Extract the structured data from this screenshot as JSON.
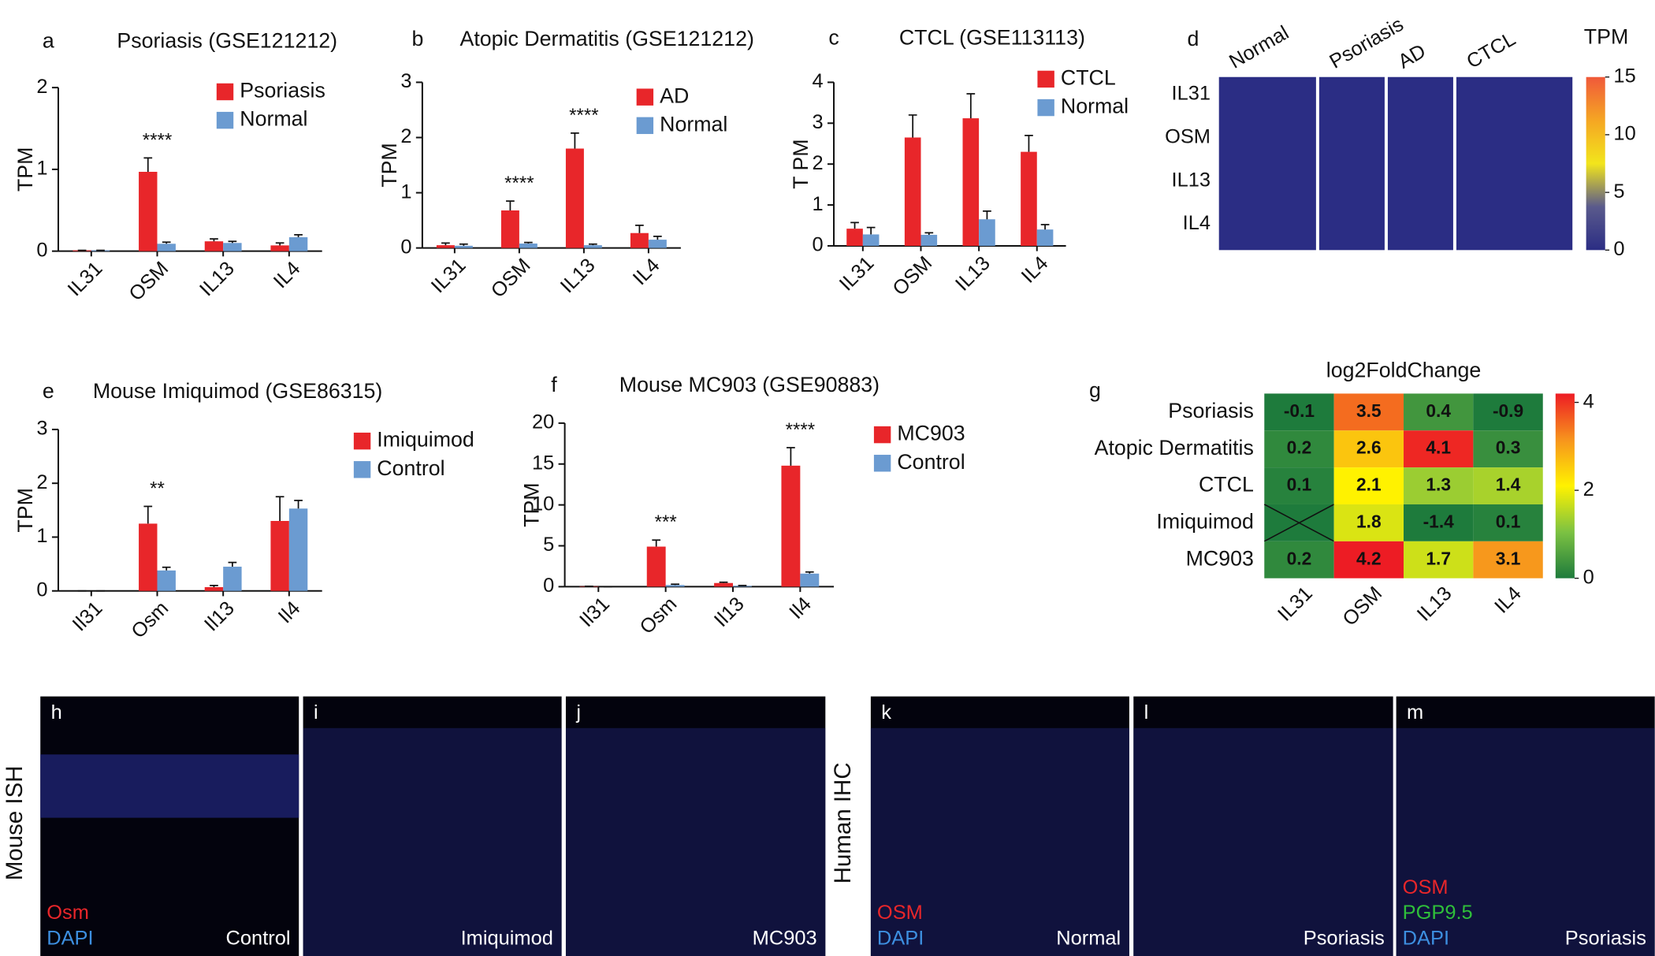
{
  "chart_data": [
    {
      "type": "bar",
      "panel": "a",
      "title": "Psoriasis (GSE121212)",
      "ylabel": "TPM",
      "categories": [
        "IL31",
        "OSM",
        "IL13",
        "IL4"
      ],
      "series": [
        {
          "name": "Psoriasis",
          "color": "#e8262a",
          "values": [
            0.01,
            0.97,
            0.12,
            0.07
          ],
          "errors": [
            0.0,
            0.17,
            0.03,
            0.03
          ]
        },
        {
          "name": "Normal",
          "color": "#6b9bd1",
          "values": [
            0.01,
            0.09,
            0.1,
            0.17
          ],
          "errors": [
            0.0,
            0.02,
            0.02,
            0.03
          ]
        }
      ],
      "significance": [
        null,
        "****",
        null,
        null
      ],
      "ylim": [
        0,
        2
      ],
      "yticks": [
        0,
        1,
        2
      ]
    },
    {
      "type": "bar",
      "panel": "b",
      "title": "Atopic Dermatitis (GSE121212)",
      "ylabel": "TPM",
      "categories": [
        "IL31",
        "OSM",
        "IL13",
        "IL4"
      ],
      "series": [
        {
          "name": "AD",
          "color": "#e8262a",
          "values": [
            0.05,
            0.68,
            1.8,
            0.27
          ],
          "errors": [
            0.04,
            0.17,
            0.28,
            0.14
          ]
        },
        {
          "name": "Normal",
          "color": "#6b9bd1",
          "values": [
            0.04,
            0.08,
            0.05,
            0.15
          ],
          "errors": [
            0.03,
            0.02,
            0.02,
            0.06
          ]
        }
      ],
      "significance": [
        null,
        "****",
        "****",
        null
      ],
      "ylim": [
        0,
        3
      ],
      "yticks": [
        0,
        1,
        2,
        3
      ]
    },
    {
      "type": "bar",
      "panel": "c",
      "title": "CTCL (GSE113113)",
      "ylabel": "T PM",
      "categories": [
        "IL31",
        "OSM",
        "IL13",
        "IL4"
      ],
      "series": [
        {
          "name": "CTCL",
          "color": "#e8262a",
          "values": [
            0.42,
            2.65,
            3.12,
            2.3
          ],
          "errors": [
            0.15,
            0.55,
            0.6,
            0.4
          ]
        },
        {
          "name": "Normal",
          "color": "#6b9bd1",
          "values": [
            0.28,
            0.27,
            0.65,
            0.4
          ],
          "errors": [
            0.17,
            0.05,
            0.2,
            0.12
          ]
        }
      ],
      "ylim": [
        0,
        4
      ],
      "yticks": [
        0,
        1,
        2,
        3,
        4
      ]
    },
    {
      "type": "heatmap",
      "panel": "d",
      "colorbar_label": "TPM",
      "groups": [
        "Normal",
        "Psoriasis",
        "AD",
        "CTCL"
      ],
      "rows": [
        "IL31",
        "OSM",
        "IL13",
        "IL4"
      ],
      "colormap": [
        "#2b2d84",
        "#5a5a8c",
        "#f2e51c",
        "#f5a623",
        "#f0593a"
      ],
      "zlim": [
        0,
        15
      ],
      "zticks": [
        0,
        5,
        10,
        15
      ]
    },
    {
      "type": "bar",
      "panel": "e",
      "title": "Mouse Imiquimod (GSE86315)",
      "ylabel": "TPM",
      "categories": [
        "Il31",
        "Osm",
        "Il13",
        "Il4"
      ],
      "series": [
        {
          "name": "Imiquimod",
          "color": "#e8262a",
          "values": [
            0,
            1.25,
            0.07,
            1.3
          ],
          "errors": [
            0,
            0.32,
            0.03,
            0.45
          ]
        },
        {
          "name": "Control",
          "color": "#6b9bd1",
          "values": [
            0,
            0.38,
            0.45,
            1.53
          ],
          "errors": [
            0,
            0.06,
            0.08,
            0.15
          ]
        }
      ],
      "significance": [
        null,
        "**",
        null,
        null
      ],
      "ylim": [
        0,
        3
      ],
      "yticks": [
        0,
        1,
        2,
        3
      ]
    },
    {
      "type": "bar",
      "panel": "f",
      "title": "Mouse MC903 (GSE90883)",
      "ylabel": "TPM",
      "categories": [
        "Il31",
        "Osm",
        "Il13",
        "Il4"
      ],
      "series": [
        {
          "name": "MC903",
          "color": "#e8262a",
          "values": [
            0.05,
            4.9,
            0.45,
            14.8
          ],
          "errors": [
            0,
            0.8,
            0.1,
            2.2
          ]
        },
        {
          "name": "Control",
          "color": "#6b9bd1",
          "values": [
            0,
            0.2,
            0.1,
            1.6
          ],
          "errors": [
            0,
            0.1,
            0.05,
            0.2
          ]
        }
      ],
      "significance": [
        null,
        "***",
        null,
        "****"
      ],
      "ylim": [
        0,
        20
      ],
      "yticks": [
        0,
        5,
        10,
        15,
        20
      ]
    },
    {
      "type": "heatmap",
      "panel": "g",
      "title": "log2FoldChange",
      "rows": [
        "Psoriasis",
        "Atopic Dermatitis",
        "CTCL",
        "Imiquimod",
        "MC903"
      ],
      "columns": [
        "IL31",
        "OSM",
        "IL13",
        "IL4"
      ],
      "values": [
        [
          -0.1,
          3.5,
          0.4,
          -0.9
        ],
        [
          0.2,
          2.6,
          4.1,
          0.3
        ],
        [
          0.1,
          2.1,
          1.3,
          1.4
        ],
        [
          null,
          1.8,
          -1.4,
          0.1
        ],
        [
          0.2,
          4.2,
          1.7,
          3.1
        ]
      ],
      "colormap": [
        "#1e7b3c",
        "#7cc242",
        "#fff200",
        "#f7941d",
        "#ed1c24"
      ],
      "zlim": [
        0,
        4.2
      ],
      "zticks": [
        0,
        2,
        4
      ]
    }
  ],
  "images": {
    "row_labels": [
      "Mouse ISH",
      "Human IHC"
    ],
    "panels": [
      {
        "panel": "h",
        "stains": [
          {
            "text": "Osm",
            "color": "#e8262a"
          },
          {
            "text": "DAPI",
            "color": "#3d8fe0"
          }
        ],
        "condition": "Control"
      },
      {
        "panel": "i",
        "condition": "Imiquimod"
      },
      {
        "panel": "j",
        "condition": "MC903"
      },
      {
        "panel": "k",
        "stains": [
          {
            "text": "OSM",
            "color": "#e8262a"
          },
          {
            "text": "DAPI",
            "color": "#3d8fe0"
          }
        ],
        "condition": "Normal"
      },
      {
        "panel": "l",
        "condition": "Psoriasis"
      },
      {
        "panel": "m",
        "stains": [
          {
            "text": "OSM",
            "color": "#e8262a"
          },
          {
            "text": "PGP9.5",
            "color": "#2fbf3a"
          },
          {
            "text": "DAPI",
            "color": "#3d8fe0"
          }
        ],
        "condition": "Psoriasis"
      }
    ]
  }
}
